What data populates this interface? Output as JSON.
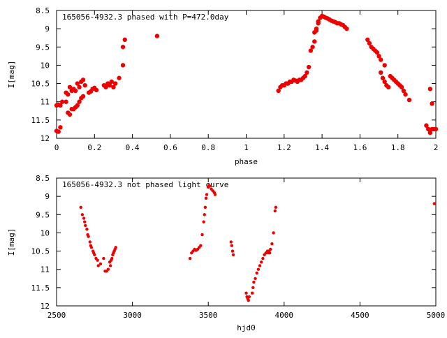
{
  "chart_data": [
    {
      "type": "scatter",
      "title": "165056-4932.3 phased with P=472.0day",
      "xlabel": "phase",
      "ylabel": "I[mag]",
      "xlim": [
        0,
        2
      ],
      "ylim": [
        12,
        8.5
      ],
      "y_inverted": true,
      "grid": false,
      "xticks": [
        0,
        0.2,
        0.4,
        0.6,
        0.8,
        1,
        1.2,
        1.4,
        1.6,
        1.8,
        2
      ],
      "xtick_labels": [
        "0",
        "0.2",
        "0.4",
        "0.6",
        "0.8",
        "1",
        "1.2",
        "1.4",
        "1.6",
        "1.8",
        "2"
      ],
      "yticks": [
        8.5,
        9,
        9.5,
        10,
        10.5,
        11,
        11.5,
        12
      ],
      "ytick_labels": [
        "8.5",
        "9",
        "9.5",
        "10",
        "10.5",
        "11",
        "11.5",
        "12"
      ],
      "marker_color": "#ee0000",
      "series": [
        {
          "x": [
            0.0,
            0.01,
            0.02,
            0.0,
            0.01,
            0.02,
            0.03,
            0.05,
            0.05,
            0.06,
            0.06,
            0.07,
            0.07,
            0.08,
            0.08,
            0.09,
            0.09,
            0.1,
            0.1,
            0.11,
            0.11,
            0.12,
            0.12,
            0.13,
            0.13,
            0.14,
            0.14,
            0.15,
            0.17,
            0.18,
            0.19,
            0.2,
            0.21,
            0.25,
            0.26,
            0.27,
            0.28,
            0.29,
            0.3,
            0.31,
            0.33,
            0.35,
            0.35,
            0.36,
            0.53,
            1.17,
            1.18,
            1.19,
            1.2,
            1.21,
            1.22,
            1.23,
            1.24,
            1.25,
            1.26,
            1.27,
            1.28,
            1.29,
            1.3,
            1.31,
            1.32,
            1.33,
            1.34,
            1.35,
            1.36,
            1.36,
            1.37,
            1.37,
            1.38,
            1.38,
            1.39,
            1.4,
            1.41,
            1.42,
            1.43,
            1.44,
            1.45,
            1.46,
            1.47,
            1.48,
            1.49,
            1.5,
            1.51,
            1.52,
            1.53,
            1.64,
            1.65,
            1.66,
            1.67,
            1.68,
            1.69,
            1.7,
            1.71,
            1.71,
            1.72,
            1.73,
            1.73,
            1.74,
            1.75,
            1.76,
            1.77,
            1.78,
            1.79,
            1.8,
            1.81,
            1.82,
            1.83,
            1.84,
            1.86,
            1.95,
            1.96,
            1.97,
            1.97,
            1.98,
            1.98,
            1.99,
            2.0
          ],
          "y": [
            11.1,
            11.08,
            11.1,
            11.8,
            11.82,
            11.7,
            11.0,
            11.0,
            10.75,
            10.8,
            11.3,
            11.35,
            10.6,
            11.2,
            10.7,
            11.2,
            10.65,
            11.15,
            10.7,
            11.1,
            10.5,
            11.0,
            10.6,
            10.9,
            10.45,
            10.85,
            10.4,
            10.55,
            10.75,
            10.72,
            10.65,
            10.62,
            10.68,
            10.55,
            10.6,
            10.5,
            10.55,
            10.45,
            10.6,
            10.5,
            10.35,
            10.0,
            9.5,
            9.3,
            9.2,
            10.7,
            10.6,
            10.55,
            10.55,
            10.5,
            10.5,
            10.45,
            10.45,
            10.4,
            10.42,
            10.45,
            10.4,
            10.4,
            10.35,
            10.3,
            10.2,
            10.05,
            9.6,
            9.5,
            9.35,
            9.1,
            9.05,
            9.0,
            8.85,
            8.8,
            8.7,
            8.65,
            8.67,
            8.7,
            8.72,
            8.75,
            8.78,
            8.8,
            8.82,
            8.85,
            8.85,
            8.88,
            8.9,
            8.95,
            9.0,
            9.3,
            9.4,
            9.5,
            9.55,
            9.6,
            9.65,
            9.75,
            9.85,
            10.2,
            10.35,
            10.0,
            10.45,
            10.55,
            10.6,
            10.3,
            10.35,
            10.4,
            10.45,
            10.5,
            10.55,
            10.6,
            10.7,
            10.8,
            10.95,
            11.65,
            11.75,
            10.65,
            11.85,
            11.05,
            11.75,
            11.75,
            11.75
          ]
        }
      ]
    },
    {
      "type": "scatter",
      "title": "165056-4932.3 not phased light curve",
      "xlabel": "hjd0",
      "ylabel": "I[mag]",
      "xlim": [
        2500,
        5000
      ],
      "ylim": [
        12,
        8.5
      ],
      "y_inverted": true,
      "grid": false,
      "xticks": [
        2500,
        3000,
        3500,
        4000,
        4500,
        5000
      ],
      "xtick_labels": [
        "2500",
        "3000",
        "3500",
        "4000",
        "4500",
        "5000"
      ],
      "yticks": [
        8.5,
        9,
        9.5,
        10,
        10.5,
        11,
        11.5,
        12
      ],
      "ytick_labels": [
        "8.5",
        "9",
        "9.5",
        "10",
        "10.5",
        "11",
        "11.5",
        "12"
      ],
      "marker_color": "#ee0000",
      "series": [
        {
          "x": [
            2660,
            2670,
            2680,
            2685,
            2690,
            2700,
            2705,
            2710,
            2720,
            2725,
            2730,
            2740,
            2745,
            2750,
            2760,
            2770,
            2775,
            2790,
            2810,
            2820,
            2830,
            2840,
            2850,
            2855,
            2860,
            2865,
            2870,
            2875,
            2880,
            2885,
            2890,
            3380,
            3390,
            3400,
            3410,
            3420,
            3430,
            3440,
            3450,
            3460,
            3470,
            3475,
            3480,
            3485,
            3490,
            3500,
            3505,
            3510,
            3520,
            3530,
            3540,
            3545,
            3650,
            3655,
            3660,
            3665,
            3750,
            3755,
            3760,
            3765,
            3770,
            3790,
            3795,
            3800,
            3810,
            3820,
            3830,
            3840,
            3850,
            3860,
            3870,
            3880,
            3890,
            3895,
            3900,
            3905,
            3910,
            3920,
            3930,
            3940,
            3945,
            4990
          ],
          "y": [
            9.3,
            9.5,
            9.6,
            9.7,
            9.8,
            9.9,
            10.05,
            10.1,
            10.25,
            10.35,
            10.4,
            10.5,
            10.55,
            10.6,
            10.7,
            10.75,
            10.9,
            10.85,
            10.7,
            11.05,
            11.05,
            11.0,
            10.8,
            10.9,
            10.75,
            10.7,
            10.6,
            10.55,
            10.5,
            10.45,
            10.4,
            10.7,
            10.55,
            10.5,
            10.45,
            10.48,
            10.45,
            10.4,
            10.35,
            10.05,
            9.7,
            9.5,
            9.3,
            9.05,
            8.95,
            8.75,
            8.7,
            8.72,
            8.8,
            8.85,
            8.9,
            8.95,
            10.25,
            10.35,
            10.5,
            10.6,
            11.65,
            11.75,
            11.8,
            11.85,
            11.75,
            11.65,
            11.5,
            11.35,
            11.25,
            11.1,
            11.0,
            10.9,
            10.8,
            10.7,
            10.6,
            10.55,
            10.5,
            10.55,
            10.5,
            10.55,
            10.45,
            10.3,
            10.0,
            9.4,
            9.3,
            9.2
          ]
        }
      ]
    }
  ]
}
